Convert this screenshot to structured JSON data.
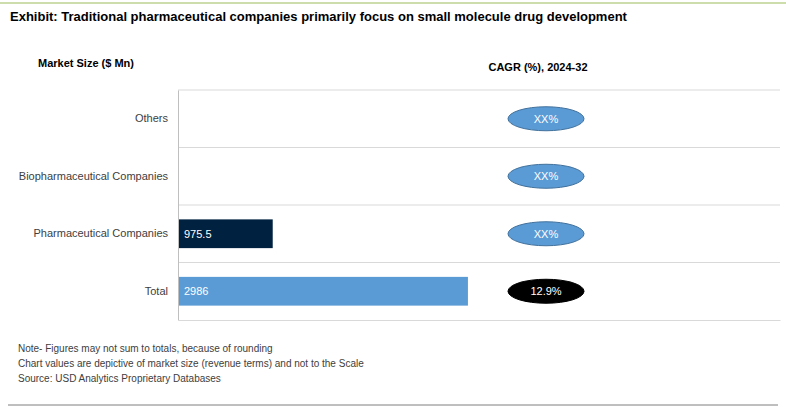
{
  "chart_data": {
    "type": "bar",
    "orientation": "horizontal",
    "title": "Exhibit: Traditional pharmaceutical companies primarily focus on small molecule drug development",
    "xlabel": "Market Size ($ Mn)",
    "categories": [
      "Others",
      "Biopharmaceutical Companies",
      "Pharmaceutical Companies",
      "Total"
    ],
    "values": [
      null,
      null,
      975.5,
      2986
    ],
    "colors": [
      null,
      null,
      "#002240",
      "#5b9bd5"
    ],
    "xlim": [
      0,
      6200
    ],
    "xticks": [],
    "tick_labels": "y",
    "data_labels": true,
    "cagr_title": "CAGR (%), 2024-32",
    "cagr_labels": [
      "XX%",
      "XX%",
      "XX%",
      "12.9%"
    ],
    "notes": [
      "Note- Figures may not sum to totals, because of rounding",
      "Chart values are depictive of market size (revenue terms) and not to the Scale",
      "Source: USD Analytics Proprietary Databases"
    ]
  }
}
